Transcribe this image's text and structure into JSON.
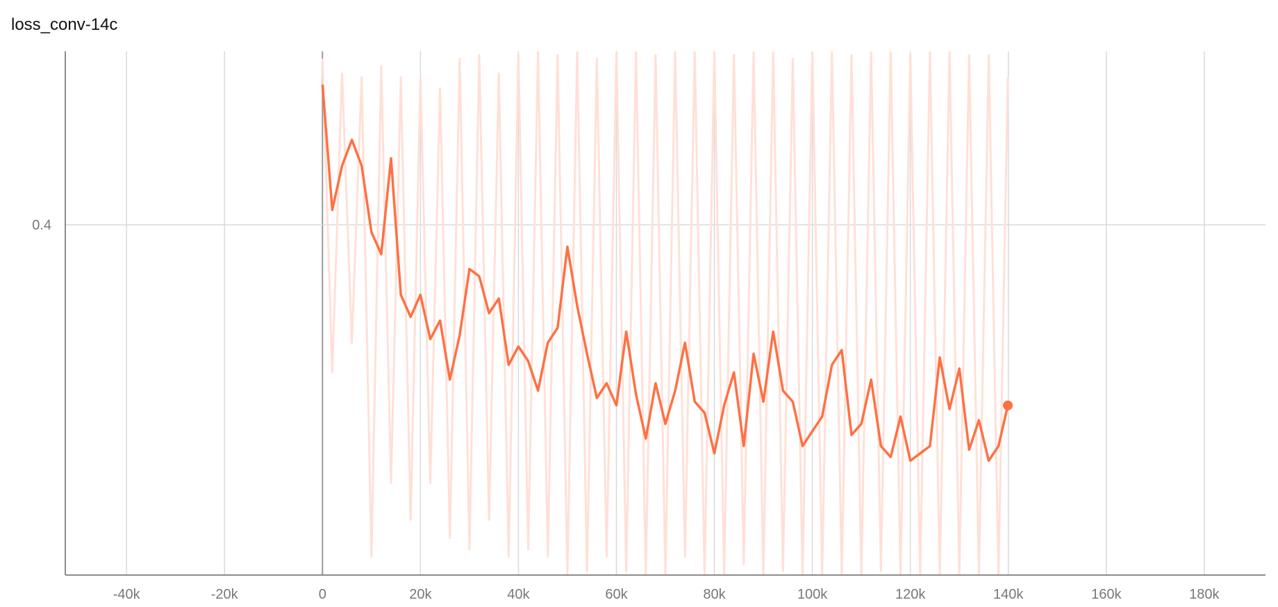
{
  "chart_data": {
    "type": "line",
    "title": "loss_conv-14c",
    "xlabel": "",
    "ylabel": "",
    "x_ticks": [
      -40000,
      -20000,
      0,
      20000,
      40000,
      60000,
      80000,
      100000,
      120000,
      140000,
      160000,
      180000
    ],
    "x_tick_labels": [
      "-40k",
      "-20k",
      "0",
      "20k",
      "40k",
      "60k",
      "80k",
      "100k",
      "120k",
      "140k",
      "160k",
      "180k"
    ],
    "y_ticks": [
      0.4
    ],
    "y_tick_labels": [
      "0.4"
    ],
    "xlim": [
      -52500,
      192500
    ],
    "ylim": [
      0.305,
      0.447
    ],
    "grid": true,
    "legend": "none",
    "colors": {
      "smoothed": "#ff7043",
      "raw": "#ffe0d6",
      "grid": "#d9d9d9",
      "zero_line": "#999999",
      "axis": "#666666"
    },
    "series": [
      {
        "role": "smoothed",
        "x": [
          0,
          2000,
          4000,
          6000,
          8000,
          10000,
          12000,
          14000,
          16000,
          18000,
          20000,
          22000,
          24000,
          26000,
          28000,
          30000,
          32000,
          34000,
          36000,
          38000,
          40000,
          42000,
          44000,
          46000,
          48000,
          50000,
          52000,
          54000,
          56000,
          58000,
          60000,
          62000,
          64000,
          66000,
          68000,
          70000,
          72000,
          74000,
          76000,
          78000,
          80000,
          82000,
          84000,
          86000,
          88000,
          90000,
          92000,
          94000,
          96000,
          98000,
          100000,
          102000,
          104000,
          106000,
          108000,
          110000,
          112000,
          114000,
          116000,
          118000,
          120000,
          122000,
          124000,
          126000,
          128000,
          130000,
          132000,
          134000,
          136000,
          138000,
          139900
        ],
        "y": [
          0.438,
          0.404,
          0.416,
          0.423,
          0.416,
          0.398,
          0.392,
          0.418,
          0.381,
          0.375,
          0.381,
          0.369,
          0.374,
          0.358,
          0.37,
          0.388,
          0.386,
          0.376,
          0.38,
          0.362,
          0.367,
          0.363,
          0.355,
          0.368,
          0.372,
          0.394,
          0.378,
          0.365,
          0.353,
          0.357,
          0.351,
          0.371,
          0.354,
          0.342,
          0.357,
          0.346,
          0.355,
          0.368,
          0.352,
          0.349,
          0.338,
          0.351,
          0.36,
          0.34,
          0.365,
          0.352,
          0.371,
          0.355,
          0.352,
          0.34,
          0.344,
          0.348,
          0.362,
          0.366,
          0.343,
          0.346,
          0.358,
          0.34,
          0.337,
          0.348,
          0.336,
          0.338,
          0.34,
          0.364,
          0.35,
          0.361,
          0.339,
          0.347,
          0.336,
          0.34,
          0.351
        ]
      },
      {
        "role": "raw",
        "x": [
          0,
          2000,
          4000,
          6000,
          8000,
          10000,
          12000,
          14000,
          16000,
          18000,
          20000,
          22000,
          24000,
          26000,
          28000,
          30000,
          32000,
          34000,
          36000,
          38000,
          40000,
          42000,
          44000,
          46000,
          48000,
          50000,
          52000,
          54000,
          56000,
          58000,
          60000,
          62000,
          64000,
          66000,
          68000,
          70000,
          72000,
          74000,
          76000,
          78000,
          80000,
          82000,
          84000,
          86000,
          88000,
          90000,
          92000,
          94000,
          96000,
          98000,
          100000,
          102000,
          104000,
          106000,
          108000,
          110000,
          112000,
          114000,
          116000,
          118000,
          120000,
          122000,
          124000,
          126000,
          128000,
          130000,
          132000,
          134000,
          136000,
          138000,
          139900
        ],
        "y": [
          0.445,
          0.36,
          0.441,
          0.368,
          0.44,
          0.31,
          0.443,
          0.33,
          0.44,
          0.32,
          0.44,
          0.33,
          0.437,
          0.315,
          0.445,
          0.312,
          0.446,
          0.32,
          0.441,
          0.31,
          0.446,
          0.312,
          0.447,
          0.31,
          0.446,
          0.305,
          0.447,
          0.306,
          0.445,
          0.31,
          0.447,
          0.306,
          0.447,
          0.305,
          0.446,
          0.305,
          0.447,
          0.31,
          0.447,
          0.305,
          0.447,
          0.305,
          0.446,
          0.308,
          0.447,
          0.305,
          0.447,
          0.306,
          0.445,
          0.305,
          0.447,
          0.305,
          0.447,
          0.305,
          0.446,
          0.305,
          0.447,
          0.306,
          0.447,
          0.305,
          0.446,
          0.305,
          0.447,
          0.305,
          0.447,
          0.305,
          0.446,
          0.305,
          0.446,
          0.305,
          0.44
        ]
      }
    ]
  }
}
